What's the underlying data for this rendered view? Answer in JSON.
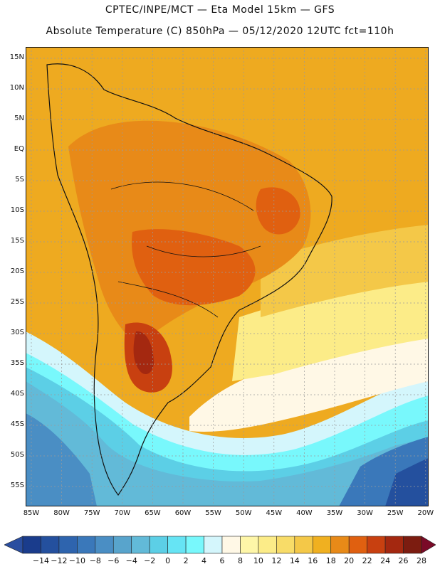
{
  "header": {
    "line1": "CPTEC/INPE/MCT —  Eta Model 15km — GFS",
    "line2": "Absolute Temperature (C) 850hPa — 05/12/2020 12UTC fct=110h"
  },
  "axes": {
    "lat_labels": [
      "15N",
      "10N",
      "5N",
      "EQ",
      "5S",
      "10S",
      "15S",
      "20S",
      "25S",
      "30S",
      "35S",
      "40S",
      "45S",
      "50S",
      "55S"
    ],
    "lon_labels": [
      "85W",
      "80W",
      "75W",
      "70W",
      "65W",
      "60W",
      "55W",
      "50W",
      "45W",
      "40W",
      "35W",
      "30W",
      "25W",
      "20W"
    ]
  },
  "colorbar": {
    "labels": [
      "-14",
      "-12",
      "-10",
      "-8",
      "-6",
      "-4",
      "-2",
      "0",
      "2",
      "4",
      "6",
      "8",
      "10",
      "12",
      "14",
      "16",
      "18",
      "20",
      "22",
      "24",
      "26",
      "28"
    ],
    "colors": [
      "#1a3c8c",
      "#24509e",
      "#2e64ae",
      "#3a78ba",
      "#4a8ec4",
      "#58a4cc",
      "#62bad8",
      "#5ccfe6",
      "#66e4f4",
      "#78f8fc",
      "#d4f6fc",
      "#fff8e6",
      "#fef6a8",
      "#fcec88",
      "#f8dc68",
      "#f4c848",
      "#f0b020",
      "#e88a18",
      "#e06010",
      "#c84010",
      "#a42810",
      "#7c1c10"
    ],
    "low_color": "#2a4ea0",
    "high_color": "#7a0a28"
  },
  "map": {
    "background": "#eeaa20",
    "gridline_color": "#9a9a9a",
    "outline_color": "#111111"
  }
}
